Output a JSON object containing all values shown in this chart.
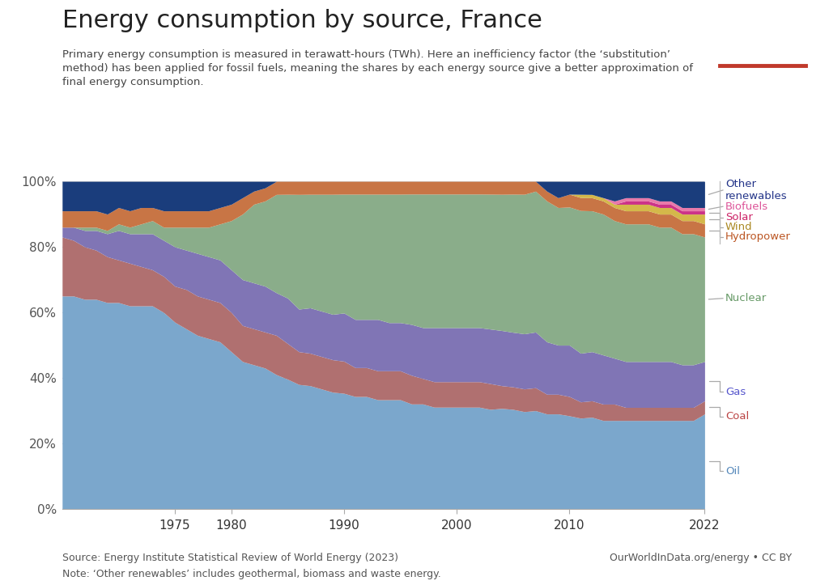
{
  "title": "Energy consumption by source, France",
  "subtitle": "Primary energy consumption is measured in terawatt-hours (TWh). Here an inefficiency factor (the ‘substitution’\nmethod) has been applied for fossil fuels, meaning the shares by each energy source give a better approximation of\nfinal energy consumption.",
  "source_text": "Source: Energy Institute Statistical Review of World Energy (2023)",
  "note_text": "Note: ‘Other renewables’ includes geothermal, biomass and waste energy.",
  "credit_text": "OurWorldInData.org/energy • CC BY",
  "years": [
    1965,
    1966,
    1967,
    1968,
    1969,
    1970,
    1971,
    1972,
    1973,
    1974,
    1975,
    1976,
    1977,
    1978,
    1979,
    1980,
    1981,
    1982,
    1983,
    1984,
    1985,
    1986,
    1987,
    1988,
    1989,
    1990,
    1991,
    1992,
    1993,
    1994,
    1995,
    1996,
    1997,
    1998,
    1999,
    2000,
    2001,
    2002,
    2003,
    2004,
    2005,
    2006,
    2007,
    2008,
    2009,
    2010,
    2011,
    2012,
    2013,
    2014,
    2015,
    2016,
    2017,
    2018,
    2019,
    2020,
    2021,
    2022
  ],
  "series": {
    "Oil": [
      65,
      65,
      64,
      64,
      63,
      63,
      62,
      62,
      62,
      60,
      57,
      55,
      53,
      52,
      51,
      48,
      45,
      44,
      43,
      41,
      40,
      38,
      38,
      37,
      36,
      36,
      35,
      35,
      34,
      34,
      34,
      33,
      33,
      32,
      32,
      32,
      32,
      32,
      31,
      31,
      31,
      30,
      30,
      29,
      29,
      29,
      28,
      28,
      27,
      27,
      27,
      27,
      27,
      27,
      27,
      27,
      27,
      29
    ],
    "Coal": [
      18,
      17,
      16,
      15,
      14,
      13,
      13,
      12,
      11,
      11,
      11,
      12,
      12,
      12,
      12,
      12,
      11,
      11,
      11,
      12,
      11,
      10,
      10,
      10,
      10,
      10,
      9,
      9,
      9,
      9,
      9,
      9,
      8,
      8,
      8,
      8,
      8,
      8,
      8,
      7,
      7,
      7,
      7,
      6,
      6,
      6,
      5,
      5,
      5,
      5,
      4,
      4,
      4,
      4,
      4,
      4,
      4,
      4
    ],
    "Gas": [
      3,
      4,
      5,
      6,
      7,
      9,
      9,
      10,
      11,
      11,
      12,
      12,
      13,
      13,
      13,
      13,
      14,
      14,
      14,
      13,
      14,
      13,
      14,
      14,
      14,
      15,
      15,
      15,
      16,
      15,
      15,
      16,
      16,
      17,
      17,
      17,
      17,
      17,
      17,
      17,
      17,
      17,
      17,
      16,
      15,
      16,
      15,
      15,
      15,
      14,
      14,
      14,
      14,
      14,
      14,
      13,
      13,
      12
    ],
    "Nuclear": [
      0,
      0,
      1,
      1,
      1,
      2,
      2,
      3,
      4,
      4,
      6,
      7,
      8,
      9,
      11,
      15,
      20,
      24,
      26,
      30,
      32,
      35,
      35,
      36,
      37,
      37,
      39,
      39,
      39,
      40,
      40,
      41,
      42,
      42,
      42,
      42,
      42,
      42,
      42,
      42,
      43,
      43,
      43,
      43,
      42,
      43,
      44,
      43,
      43,
      42,
      42,
      42,
      42,
      41,
      41,
      40,
      40,
      38
    ],
    "Hydropower": [
      5,
      5,
      5,
      5,
      5,
      5,
      5,
      5,
      4,
      5,
      5,
      5,
      5,
      5,
      5,
      5,
      5,
      4,
      4,
      4,
      4,
      4,
      4,
      4,
      4,
      4,
      4,
      4,
      4,
      4,
      4,
      4,
      4,
      4,
      4,
      4,
      4,
      4,
      4,
      4,
      4,
      4,
      3,
      3,
      3,
      4,
      4,
      4,
      4,
      4,
      4,
      4,
      4,
      4,
      4,
      4,
      4,
      4
    ],
    "Wind": [
      0,
      0,
      0,
      0,
      0,
      0,
      0,
      0,
      0,
      0,
      0,
      0,
      0,
      0,
      0,
      0,
      0,
      0,
      0,
      0,
      0,
      0,
      0,
      0,
      0,
      0,
      0,
      0,
      0,
      0,
      0,
      0,
      0,
      0,
      0,
      0,
      0,
      0,
      0,
      0,
      0,
      0,
      0,
      0,
      0,
      0,
      1,
      1,
      1,
      1,
      2,
      2,
      2,
      2,
      2,
      2,
      2,
      3
    ],
    "Solar": [
      0,
      0,
      0,
      0,
      0,
      0,
      0,
      0,
      0,
      0,
      0,
      0,
      0,
      0,
      0,
      0,
      0,
      0,
      0,
      0,
      0,
      0,
      0,
      0,
      0,
      0,
      0,
      0,
      0,
      0,
      0,
      0,
      0,
      0,
      0,
      0,
      0,
      0,
      0,
      0,
      0,
      0,
      0,
      0,
      0,
      0,
      0,
      0,
      0,
      0,
      1,
      1,
      1,
      1,
      1,
      1,
      1,
      1
    ],
    "Biofuels": [
      0,
      0,
      0,
      0,
      0,
      0,
      0,
      0,
      0,
      0,
      0,
      0,
      0,
      0,
      0,
      0,
      0,
      0,
      0,
      0,
      0,
      0,
      0,
      0,
      0,
      0,
      0,
      0,
      0,
      0,
      0,
      0,
      0,
      0,
      0,
      0,
      0,
      0,
      0,
      0,
      0,
      0,
      0,
      0,
      0,
      0,
      0,
      0,
      0,
      1,
      1,
      1,
      1,
      1,
      1,
      1,
      1,
      1
    ],
    "Other renewables": [
      9,
      9,
      9,
      9,
      10,
      8,
      9,
      8,
      8,
      9,
      9,
      9,
      9,
      9,
      8,
      7,
      5,
      3,
      2,
      0,
      0,
      0,
      0,
      0,
      0,
      0,
      0,
      0,
      0,
      0,
      0,
      0,
      0,
      0,
      0,
      0,
      0,
      0,
      0,
      0,
      0,
      0,
      0,
      3,
      5,
      4,
      4,
      4,
      5,
      6,
      5,
      5,
      5,
      6,
      6,
      8,
      8,
      8
    ]
  },
  "colors": {
    "Oil": "#7ba7cc",
    "Coal": "#b07070",
    "Gas": "#8075b5",
    "Nuclear": "#8aad8a",
    "Hydropower": "#c87545",
    "Wind": "#d4b84a",
    "Solar": "#cc3388",
    "Biofuels": "#e87aaa",
    "Other renewables": "#1a3d7c"
  },
  "label_colors": {
    "Oil": "#5588bb",
    "Coal": "#bb4444",
    "Gas": "#5555cc",
    "Nuclear": "#669966",
    "Hydropower": "#bb5522",
    "Wind": "#aa8822",
    "Solar": "#cc2266",
    "Biofuels": "#dd5599",
    "Other renewables": "#223388"
  },
  "logo_bg": "#1a3a5c",
  "logo_red": "#c0392b",
  "background_color": "#ffffff"
}
